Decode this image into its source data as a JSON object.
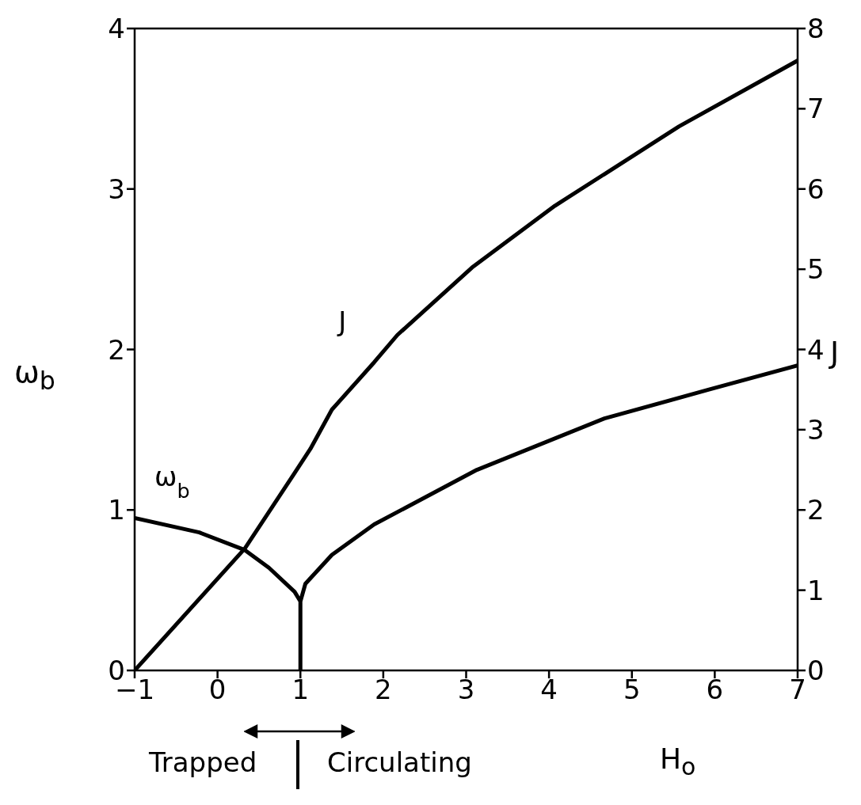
{
  "chart_data": {
    "type": "line",
    "xlabel": "H$_{o}$",
    "ylabel": "ω$_{b}$",
    "y2label": "J",
    "xlim": [
      -1,
      7
    ],
    "xticks": [
      -1,
      0,
      1,
      2,
      3,
      4,
      5,
      6,
      7
    ],
    "ylim": [
      0,
      4
    ],
    "yticks": [
      0,
      1,
      2,
      3,
      4
    ],
    "y2lim": [
      0,
      8
    ],
    "y2ticks": [
      0,
      1,
      2,
      3,
      4,
      5,
      6,
      7,
      8
    ],
    "marker": "none",
    "line_style": "solid",
    "annotations": [
      "Trapped",
      "Circulating"
    ],
    "series": [
      {
        "name": "ω$_{b}$",
        "color": "#000000",
        "x": [
          -1,
          -0.22,
          0.33,
          0.62,
          0.93,
          1,
          1,
          1,
          1.06,
          1.38,
          1.89,
          3.13,
          4.67,
          5.93,
          7
        ],
        "values": [
          0.95,
          0.86,
          0.75,
          0.64,
          0.49,
          0.43,
          0,
          0.43,
          0.54,
          0.72,
          0.91,
          1.25,
          1.57,
          1.75,
          1.9
        ]
      },
      {
        "name": "J",
        "axis": "y2",
        "color": "#000000",
        "x": [
          -1,
          0.33,
          0.93,
          1.12,
          1.38,
          1.89,
          2.17,
          3.07,
          4.07,
          5.57,
          7
        ],
        "values": [
          0,
          1.52,
          2.46,
          2.76,
          3.25,
          3.84,
          4.18,
          5.02,
          5.79,
          6.78,
          7.6
        ]
      }
    ]
  }
}
